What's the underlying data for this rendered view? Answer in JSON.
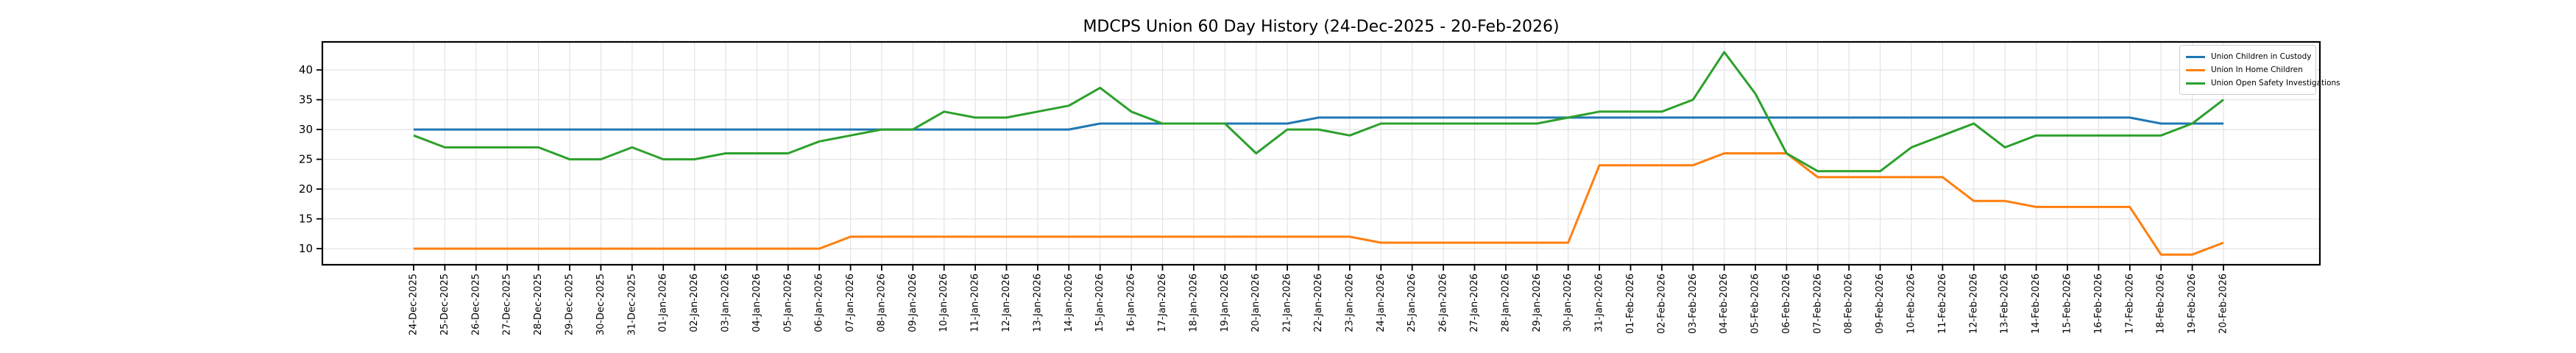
{
  "window": {
    "title": "MDCPS Union 60 Day History (24-Dec-2025 - 20-Feb-2026)"
  },
  "chart_data": {
    "type": "line",
    "title": "MDCPS Union 60 Day History (24-Dec-2025 - 20-Feb-2026)",
    "xlabel": "",
    "ylabel": "",
    "x_labels": [
      "24-Dec-2025",
      "25-Dec-2025",
      "26-Dec-2025",
      "27-Dec-2025",
      "28-Dec-2025",
      "29-Dec-2025",
      "30-Dec-2025",
      "31-Dec-2025",
      "01-Jan-2026",
      "02-Jan-2026",
      "03-Jan-2026",
      "04-Jan-2026",
      "05-Jan-2026",
      "06-Jan-2026",
      "07-Jan-2026",
      "08-Jan-2026",
      "09-Jan-2026",
      "10-Jan-2026",
      "11-Jan-2026",
      "12-Jan-2026",
      "13-Jan-2026",
      "14-Jan-2026",
      "15-Jan-2026",
      "16-Jan-2026",
      "17-Jan-2026",
      "18-Jan-2026",
      "19-Jan-2026",
      "20-Jan-2026",
      "21-Jan-2026",
      "22-Jan-2026",
      "23-Jan-2026",
      "24-Jan-2026",
      "25-Jan-2026",
      "26-Jan-2026",
      "27-Jan-2026",
      "28-Jan-2026",
      "29-Jan-2026",
      "30-Jan-2026",
      "31-Jan-2026",
      "01-Feb-2026",
      "02-Feb-2026",
      "03-Feb-2026",
      "04-Feb-2026",
      "05-Feb-2026",
      "06-Feb-2026",
      "07-Feb-2026",
      "08-Feb-2026",
      "09-Feb-2026",
      "10-Feb-2026",
      "11-Feb-2026",
      "12-Feb-2026",
      "13-Feb-2026",
      "14-Feb-2026",
      "15-Feb-2026",
      "16-Feb-2026",
      "17-Feb-2026",
      "18-Feb-2026",
      "19-Feb-2026",
      "20-Feb-2026"
    ],
    "series": [
      {
        "name": "Union Children in Custody",
        "color": "#1f77b4",
        "values": [
          30,
          30,
          30,
          30,
          30,
          30,
          30,
          30,
          30,
          30,
          30,
          30,
          30,
          30,
          30,
          30,
          30,
          30,
          30,
          30,
          30,
          30,
          31,
          31,
          31,
          31,
          31,
          31,
          31,
          32,
          32,
          32,
          32,
          32,
          32,
          32,
          32,
          32,
          32,
          32,
          32,
          32,
          32,
          32,
          32,
          32,
          32,
          32,
          32,
          32,
          32,
          32,
          32,
          32,
          32,
          32,
          31,
          31,
          31
        ]
      },
      {
        "name": "Union In Home Children",
        "color": "#ff7f0e",
        "values": [
          10,
          10,
          10,
          10,
          10,
          10,
          10,
          10,
          10,
          10,
          10,
          10,
          10,
          10,
          12,
          12,
          12,
          12,
          12,
          12,
          12,
          12,
          12,
          12,
          12,
          12,
          12,
          12,
          12,
          12,
          12,
          11,
          11,
          11,
          11,
          11,
          11,
          11,
          24,
          24,
          24,
          24,
          26,
          26,
          26,
          22,
          22,
          22,
          22,
          22,
          18,
          18,
          17,
          17,
          17,
          17,
          9,
          9,
          11
        ]
      },
      {
        "name": "Union Open Safety Investigations",
        "color": "#2ca02c",
        "values": [
          29,
          27,
          27,
          27,
          27,
          25,
          25,
          27,
          25,
          25,
          26,
          26,
          26,
          28,
          29,
          30,
          30,
          33,
          32,
          32,
          33,
          34,
          37,
          33,
          31,
          31,
          31,
          26,
          30,
          30,
          29,
          31,
          31,
          31,
          31,
          31,
          31,
          32,
          33,
          33,
          33,
          35,
          43,
          36,
          26,
          23,
          23,
          23,
          27,
          29,
          31,
          27,
          29,
          29,
          29,
          29,
          29,
          31,
          35
        ]
      }
    ],
    "yticks": [
      10,
      15,
      20,
      25,
      30,
      35,
      40
    ],
    "ylim": [
      7.3,
      44.7
    ],
    "grid": true,
    "legend_position": "upper right",
    "grid_color": "#e3e3e3",
    "axis_color": "#000000",
    "background_color": "#ffffff"
  }
}
